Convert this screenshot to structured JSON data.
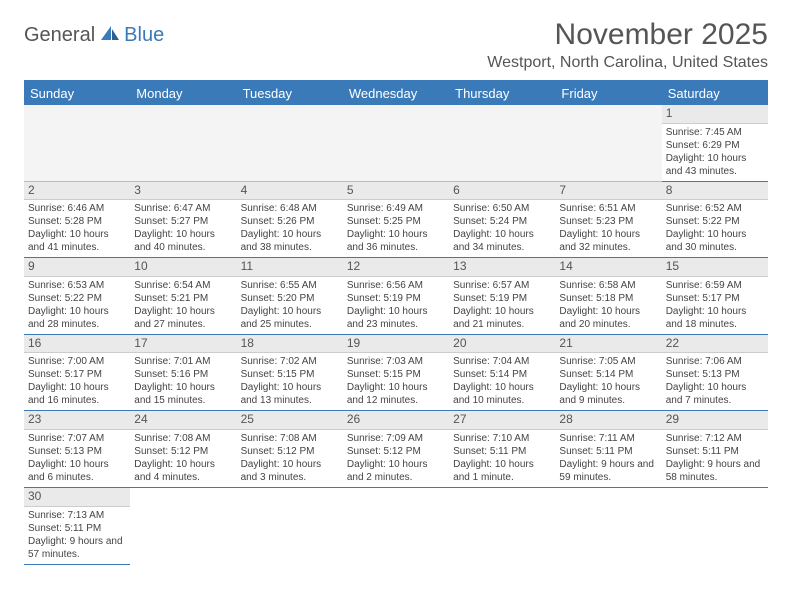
{
  "logo": {
    "part1": "General",
    "part2": "Blue"
  },
  "title": "November 2025",
  "location": "Westport, North Carolina, United States",
  "colors": {
    "header_bg": "#3b7ab8",
    "header_text": "#ffffff",
    "body_text": "#444444",
    "daynum_bg": "#eaeaea",
    "page_bg": "#ffffff"
  },
  "weekdays": [
    "Sunday",
    "Monday",
    "Tuesday",
    "Wednesday",
    "Thursday",
    "Friday",
    "Saturday"
  ],
  "blank_leading": 6,
  "days": [
    {
      "n": 1,
      "sunrise": "7:45 AM",
      "sunset": "6:29 PM",
      "daylight": "10 hours and 43 minutes."
    },
    {
      "n": 2,
      "sunrise": "6:46 AM",
      "sunset": "5:28 PM",
      "daylight": "10 hours and 41 minutes."
    },
    {
      "n": 3,
      "sunrise": "6:47 AM",
      "sunset": "5:27 PM",
      "daylight": "10 hours and 40 minutes."
    },
    {
      "n": 4,
      "sunrise": "6:48 AM",
      "sunset": "5:26 PM",
      "daylight": "10 hours and 38 minutes."
    },
    {
      "n": 5,
      "sunrise": "6:49 AM",
      "sunset": "5:25 PM",
      "daylight": "10 hours and 36 minutes."
    },
    {
      "n": 6,
      "sunrise": "6:50 AM",
      "sunset": "5:24 PM",
      "daylight": "10 hours and 34 minutes."
    },
    {
      "n": 7,
      "sunrise": "6:51 AM",
      "sunset": "5:23 PM",
      "daylight": "10 hours and 32 minutes."
    },
    {
      "n": 8,
      "sunrise": "6:52 AM",
      "sunset": "5:22 PM",
      "daylight": "10 hours and 30 minutes."
    },
    {
      "n": 9,
      "sunrise": "6:53 AM",
      "sunset": "5:22 PM",
      "daylight": "10 hours and 28 minutes."
    },
    {
      "n": 10,
      "sunrise": "6:54 AM",
      "sunset": "5:21 PM",
      "daylight": "10 hours and 27 minutes."
    },
    {
      "n": 11,
      "sunrise": "6:55 AM",
      "sunset": "5:20 PM",
      "daylight": "10 hours and 25 minutes."
    },
    {
      "n": 12,
      "sunrise": "6:56 AM",
      "sunset": "5:19 PM",
      "daylight": "10 hours and 23 minutes."
    },
    {
      "n": 13,
      "sunrise": "6:57 AM",
      "sunset": "5:19 PM",
      "daylight": "10 hours and 21 minutes."
    },
    {
      "n": 14,
      "sunrise": "6:58 AM",
      "sunset": "5:18 PM",
      "daylight": "10 hours and 20 minutes."
    },
    {
      "n": 15,
      "sunrise": "6:59 AM",
      "sunset": "5:17 PM",
      "daylight": "10 hours and 18 minutes."
    },
    {
      "n": 16,
      "sunrise": "7:00 AM",
      "sunset": "5:17 PM",
      "daylight": "10 hours and 16 minutes."
    },
    {
      "n": 17,
      "sunrise": "7:01 AM",
      "sunset": "5:16 PM",
      "daylight": "10 hours and 15 minutes."
    },
    {
      "n": 18,
      "sunrise": "7:02 AM",
      "sunset": "5:15 PM",
      "daylight": "10 hours and 13 minutes."
    },
    {
      "n": 19,
      "sunrise": "7:03 AM",
      "sunset": "5:15 PM",
      "daylight": "10 hours and 12 minutes."
    },
    {
      "n": 20,
      "sunrise": "7:04 AM",
      "sunset": "5:14 PM",
      "daylight": "10 hours and 10 minutes."
    },
    {
      "n": 21,
      "sunrise": "7:05 AM",
      "sunset": "5:14 PM",
      "daylight": "10 hours and 9 minutes."
    },
    {
      "n": 22,
      "sunrise": "7:06 AM",
      "sunset": "5:13 PM",
      "daylight": "10 hours and 7 minutes."
    },
    {
      "n": 23,
      "sunrise": "7:07 AM",
      "sunset": "5:13 PM",
      "daylight": "10 hours and 6 minutes."
    },
    {
      "n": 24,
      "sunrise": "7:08 AM",
      "sunset": "5:12 PM",
      "daylight": "10 hours and 4 minutes."
    },
    {
      "n": 25,
      "sunrise": "7:08 AM",
      "sunset": "5:12 PM",
      "daylight": "10 hours and 3 minutes."
    },
    {
      "n": 26,
      "sunrise": "7:09 AM",
      "sunset": "5:12 PM",
      "daylight": "10 hours and 2 minutes."
    },
    {
      "n": 27,
      "sunrise": "7:10 AM",
      "sunset": "5:11 PM",
      "daylight": "10 hours and 1 minute."
    },
    {
      "n": 28,
      "sunrise": "7:11 AM",
      "sunset": "5:11 PM",
      "daylight": "9 hours and 59 minutes."
    },
    {
      "n": 29,
      "sunrise": "7:12 AM",
      "sunset": "5:11 PM",
      "daylight": "9 hours and 58 minutes."
    },
    {
      "n": 30,
      "sunrise": "7:13 AM",
      "sunset": "5:11 PM",
      "daylight": "9 hours and 57 minutes."
    }
  ],
  "labels": {
    "sunrise": "Sunrise:",
    "sunset": "Sunset:",
    "daylight": "Daylight:"
  }
}
